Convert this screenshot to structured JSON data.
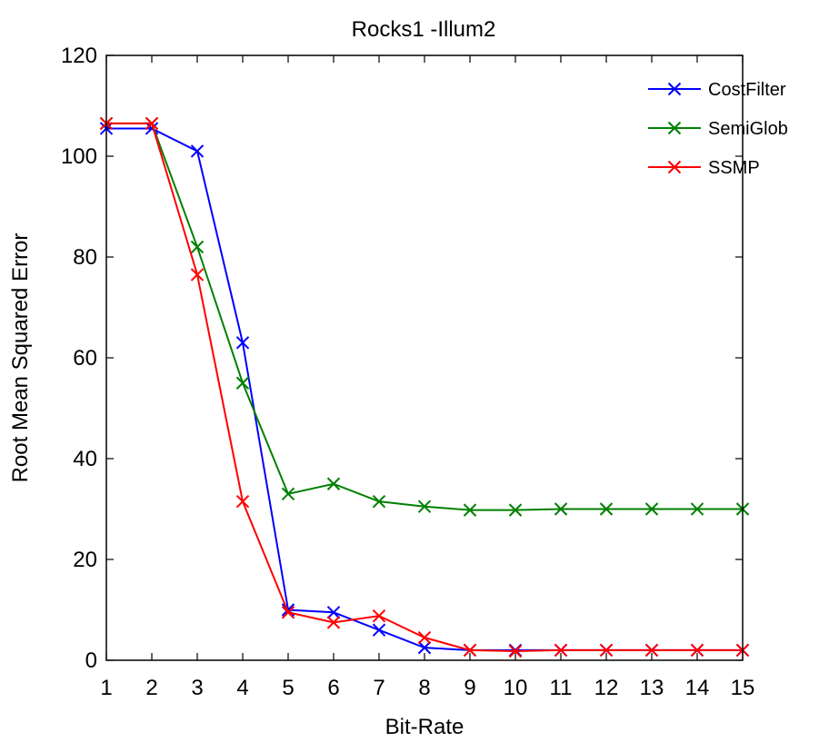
{
  "chart_data": {
    "type": "line",
    "title": "Rocks1 -Illum2",
    "xlabel": "Bit-Rate",
    "ylabel": "Root Mean Squared Error",
    "xlim": [
      1,
      15
    ],
    "ylim": [
      0,
      120
    ],
    "x_ticks": [
      1,
      2,
      3,
      4,
      5,
      6,
      7,
      8,
      9,
      10,
      11,
      12,
      13,
      14,
      15
    ],
    "y_ticks": [
      0,
      20,
      40,
      60,
      80,
      100,
      120
    ],
    "grid": false,
    "legend_position": "top-right",
    "x": [
      1,
      2,
      3,
      4,
      5,
      6,
      7,
      8,
      9,
      10,
      11,
      12,
      13,
      14,
      15
    ],
    "series": [
      {
        "name": "CostFilter",
        "color": "#0000ff",
        "marker": "x",
        "values": [
          105.5,
          105.5,
          101,
          63,
          10,
          9.5,
          6,
          2.5,
          2,
          2,
          2,
          2,
          2,
          2,
          2
        ]
      },
      {
        "name": "SemiGlob",
        "color": "#008000",
        "marker": "x",
        "values": [
          106.5,
          106.5,
          82,
          55,
          33,
          35,
          31.5,
          30.5,
          29.8,
          29.8,
          30,
          30,
          30,
          30,
          30
        ]
      },
      {
        "name": "SSMP",
        "color": "#ff0000",
        "marker": "x",
        "values": [
          106.5,
          106.5,
          76.5,
          31.5,
          9.5,
          7.5,
          8.8,
          4.5,
          2,
          1.8,
          2,
          2,
          2,
          2,
          2
        ]
      }
    ]
  }
}
